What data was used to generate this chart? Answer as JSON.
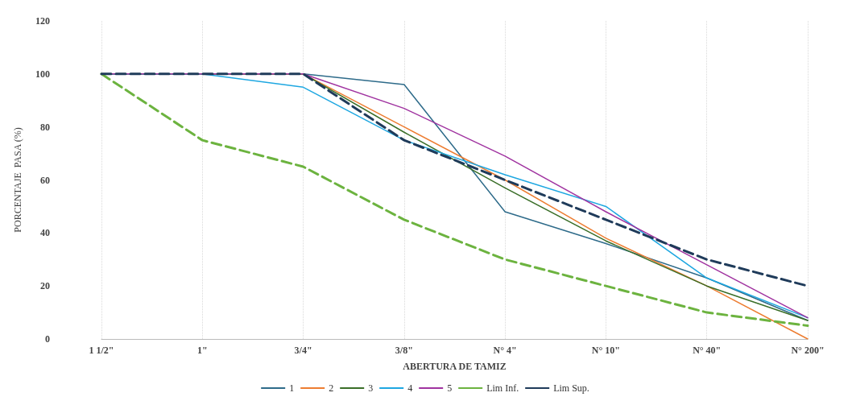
{
  "chart_data": {
    "type": "line",
    "xlabel": "ABERTURA DE TAMIZ",
    "ylabel": "PORCENTAJE  PASA (%)",
    "categories": [
      "1 1/2\"",
      "1\"",
      "3/4\"",
      "3/8\"",
      "N° 4\"",
      "N° 10\"",
      "N° 40\"",
      "N° 200\""
    ],
    "series": [
      {
        "name": "1",
        "color": "#2e6b8a",
        "values": [
          100,
          100,
          100,
          96,
          48,
          36,
          23,
          7
        ]
      },
      {
        "name": "2",
        "color": "#ed7d31",
        "values": [
          100,
          100,
          100,
          80,
          60,
          38,
          20,
          0
        ]
      },
      {
        "name": "3",
        "color": "#3a6e28",
        "values": [
          100,
          100,
          100,
          78,
          57,
          37,
          20,
          7
        ]
      },
      {
        "name": "4",
        "color": "#1ea7e1",
        "values": [
          100,
          100,
          95,
          75,
          62,
          50,
          23,
          8
        ]
      },
      {
        "name": "5",
        "color": "#a033a0",
        "values": [
          100,
          100,
          100,
          87,
          69,
          48,
          28,
          8
        ]
      },
      {
        "name": "Lim Inf.",
        "color": "#6cb33f",
        "line_style": "dashed",
        "values": [
          100,
          75,
          65,
          45,
          30,
          20,
          10,
          5
        ]
      },
      {
        "name": "Lim Sup.",
        "color": "#1f3b5a",
        "line_style": "dashed",
        "values": [
          100,
          100,
          100,
          75,
          60,
          45,
          30,
          20
        ]
      }
    ],
    "ylim": [
      0,
      120
    ],
    "yticks": [
      0,
      20,
      40,
      60,
      80,
      100,
      120
    ],
    "grid": "x",
    "legend": "bottom",
    "marker": "none",
    "line_style": "solid"
  }
}
